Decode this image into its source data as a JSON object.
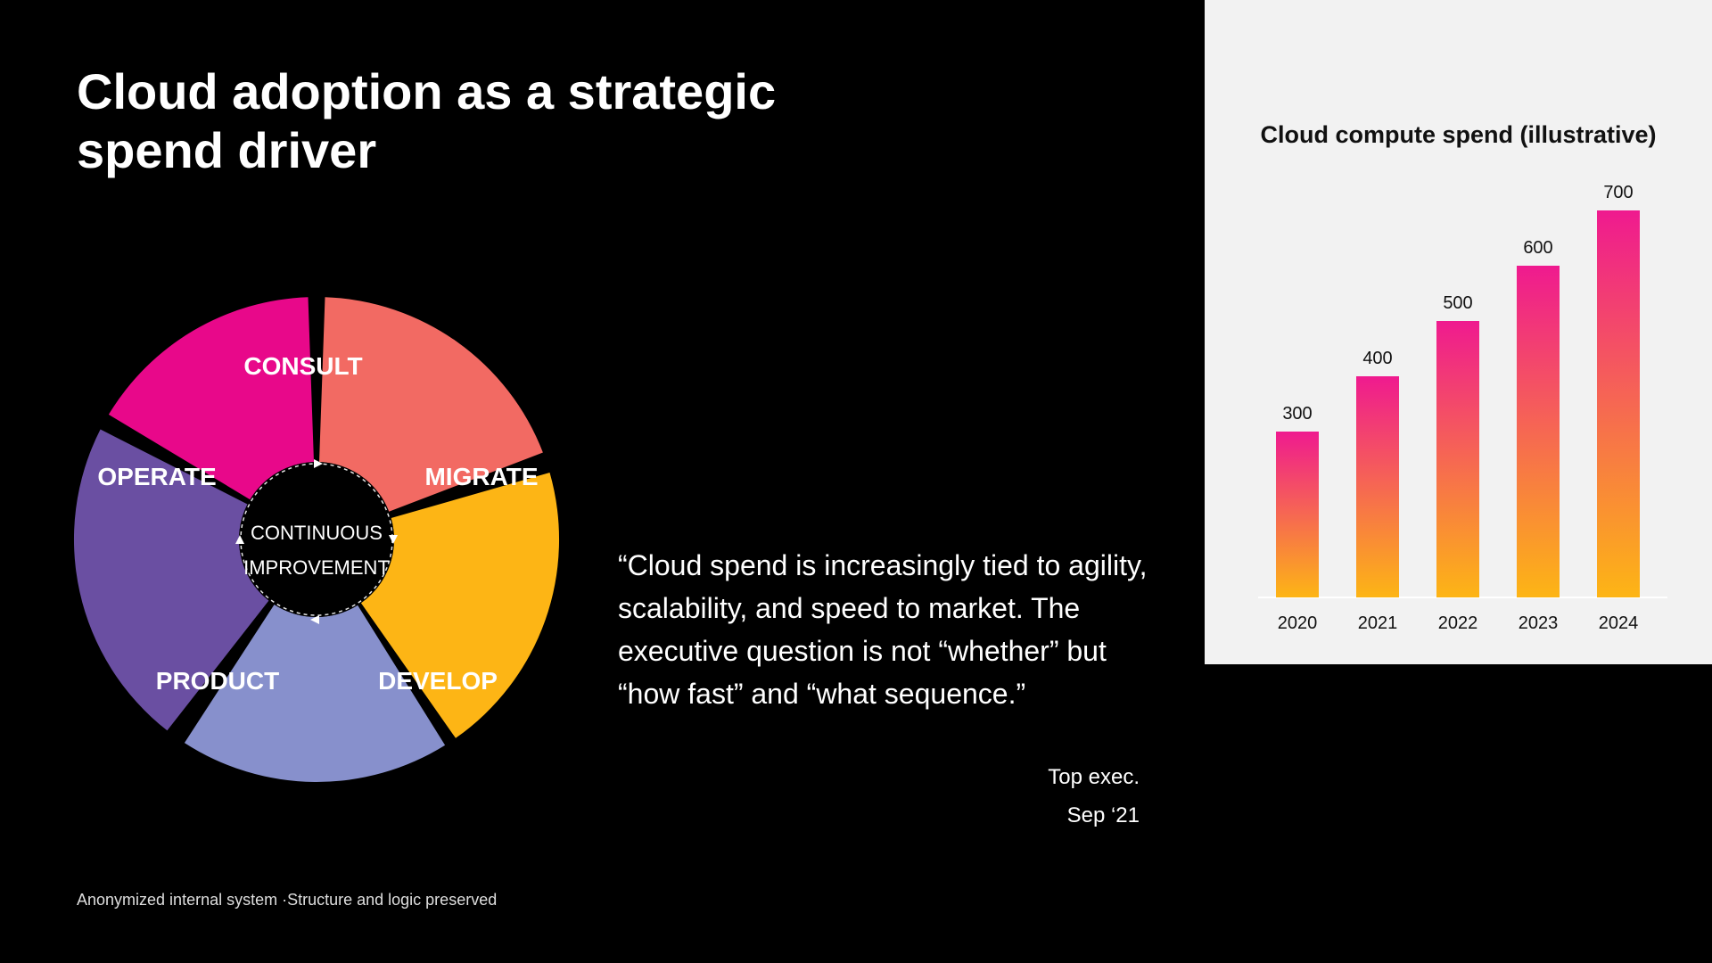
{
  "slide": {
    "title": "Cloud adoption as a strategic\nspend driver",
    "quote": "“Cloud spend is increasingly tied to agility, scalability, and speed to market. The executive question is not “whether” but “how fast” and “what sequence.”",
    "attribution_name": "Top exec.",
    "attribution_date": "Sep ‘21",
    "footnote": "Anonymized internal system ·Structure and logic preserved"
  },
  "cycle": {
    "center_line1": "CONTINUOUS",
    "center_line2": "IMPROVEMENT",
    "segments": [
      {
        "label": "CONSULT",
        "color": "#e8088a"
      },
      {
        "label": "MIGRATE",
        "color": "#f26a63"
      },
      {
        "label": "DEVELOP",
        "color": "#fdb515"
      },
      {
        "label": "PRODUCT",
        "color": "#8790cc"
      },
      {
        "label": "OPERATE",
        "color": "#6a4fa2"
      }
    ]
  },
  "chart_data": {
    "type": "bar",
    "title": "Cloud compute spend (illustrative)",
    "categories": [
      "2020",
      "2021",
      "2022",
      "2023",
      "2024"
    ],
    "values": [
      300,
      400,
      500,
      600,
      700
    ],
    "ylim": [
      0,
      700
    ],
    "data_labels": true,
    "grid": false,
    "bar_gradient": {
      "top": "#ef1a8f",
      "bottom": "#fdb515"
    }
  }
}
